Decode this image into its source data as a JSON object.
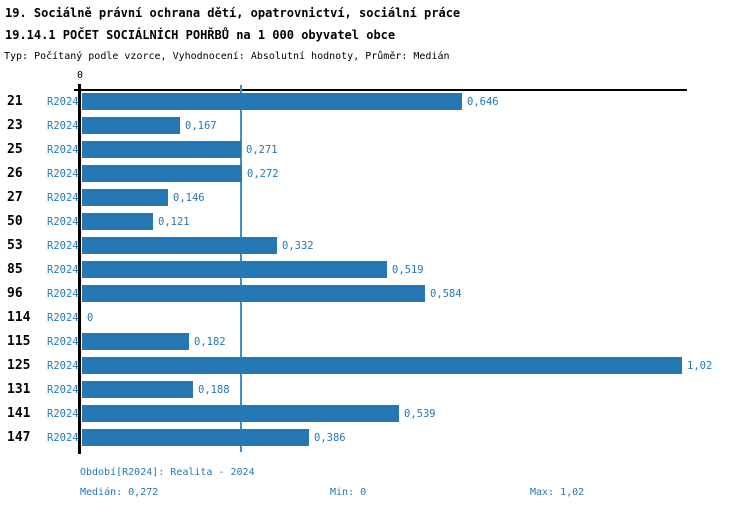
{
  "header": {
    "title_line1": "19. Sociálně právní ochrana dětí, opatrovnictví, sociální práce",
    "title_line2": "19.14.1 POČET SOCIÁLNÍCH POHŘBŮ na 1 000 obyvatel obce",
    "subtitle": "Typ: Počítaný podle vzorce, Vyhodnocení: Absolutní hodnoty, Průměr: Medián"
  },
  "chart_data": {
    "type": "bar",
    "orientation": "horizontal",
    "title": "19.14.1 POČET SOCIÁLNÍCH POHŘBŮ na 1 000 obyvatel obce",
    "categories": [
      "21",
      "23",
      "25",
      "26",
      "27",
      "50",
      "53",
      "85",
      "96",
      "114",
      "115",
      "125",
      "131",
      "141",
      "147"
    ],
    "series": [
      {
        "name": "R2024",
        "values": [
          0.646,
          0.167,
          0.271,
          0.272,
          0.146,
          0.121,
          0.332,
          0.519,
          0.584,
          0,
          0.182,
          1.02,
          0.188,
          0.539,
          0.386
        ],
        "value_labels": [
          "0,646",
          "0,167",
          "0,271",
          "0,272",
          "0,146",
          "0,121",
          "0,332",
          "0,519",
          "0,584",
          "0",
          "0,182",
          "1,02",
          "0,188",
          "0,539",
          "0,386"
        ]
      }
    ],
    "xlim": [
      0,
      1.02
    ],
    "zero_tick_label": "0",
    "gridlines": [
      0.272
    ],
    "grid": true,
    "legend_position": "none",
    "stats": {
      "median": 0.272,
      "min": 0,
      "max": 1.02
    }
  },
  "footer": {
    "period_info": "Období[R2024]: Realita - 2024",
    "median_label": "Medián: 0,272",
    "min_label": "Min: 0",
    "max_label": "Max: 1,02"
  },
  "colors": {
    "bar": "#2478b4",
    "accent_text": "#2478b4",
    "gridline": "#4090c5",
    "axis": "#000000"
  }
}
